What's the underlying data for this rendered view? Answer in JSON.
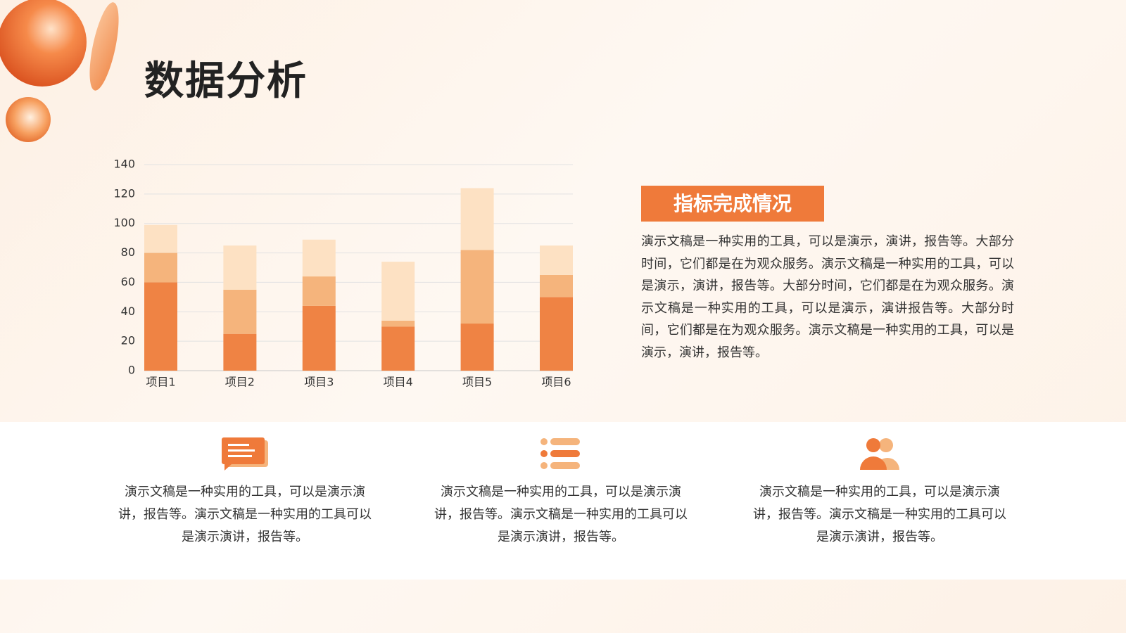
{
  "title": "数据分析",
  "chart_data": {
    "type": "bar",
    "stacked": true,
    "categories": [
      "项目1",
      "项目2",
      "项目3",
      "项目4",
      "项目5",
      "项目6"
    ],
    "series": [
      {
        "color": "#ef8344",
        "values": [
          60,
          25,
          44,
          30,
          32,
          50
        ]
      },
      {
        "color": "#f5b47c",
        "values": [
          20,
          30,
          20,
          4,
          50,
          15
        ]
      },
      {
        "color": "#fde1c3",
        "values": [
          19,
          30,
          25,
          40,
          42,
          20
        ]
      }
    ],
    "ylim": [
      0,
      140
    ],
    "yticks": [
      0,
      20,
      40,
      60,
      80,
      100,
      120,
      140
    ],
    "grid": true
  },
  "panel": {
    "heading": "指标完成情况",
    "text": "演示文稿是一种实用的工具，可以是演示，演讲，报告等。大部分时间，它们都是在为观众服务。演示文稿是一种实用的工具，可以是演示，演讲，报告等。大部分时间，它们都是在为观众服务。演示文稿是一种实用的工具，可以是演示，演讲报告等。大部分时间，它们都是在为观众服务。演示文稿是一种实用的工具，可以是演示，演讲，报告等。"
  },
  "cards": [
    {
      "text": "演示文稿是一种实用的工具，可以是演示演讲，报告等。演示文稿是一种实用的工具可以是演示演讲，报告等。"
    },
    {
      "text": "演示文稿是一种实用的工具，可以是演示演讲，报告等。演示文稿是一种实用的工具可以是演示演讲，报告等。"
    },
    {
      "text": "演示文稿是一种实用的工具，可以是演示演讲，报告等。演示文稿是一种实用的工具可以是演示演讲，报告等。"
    }
  ]
}
